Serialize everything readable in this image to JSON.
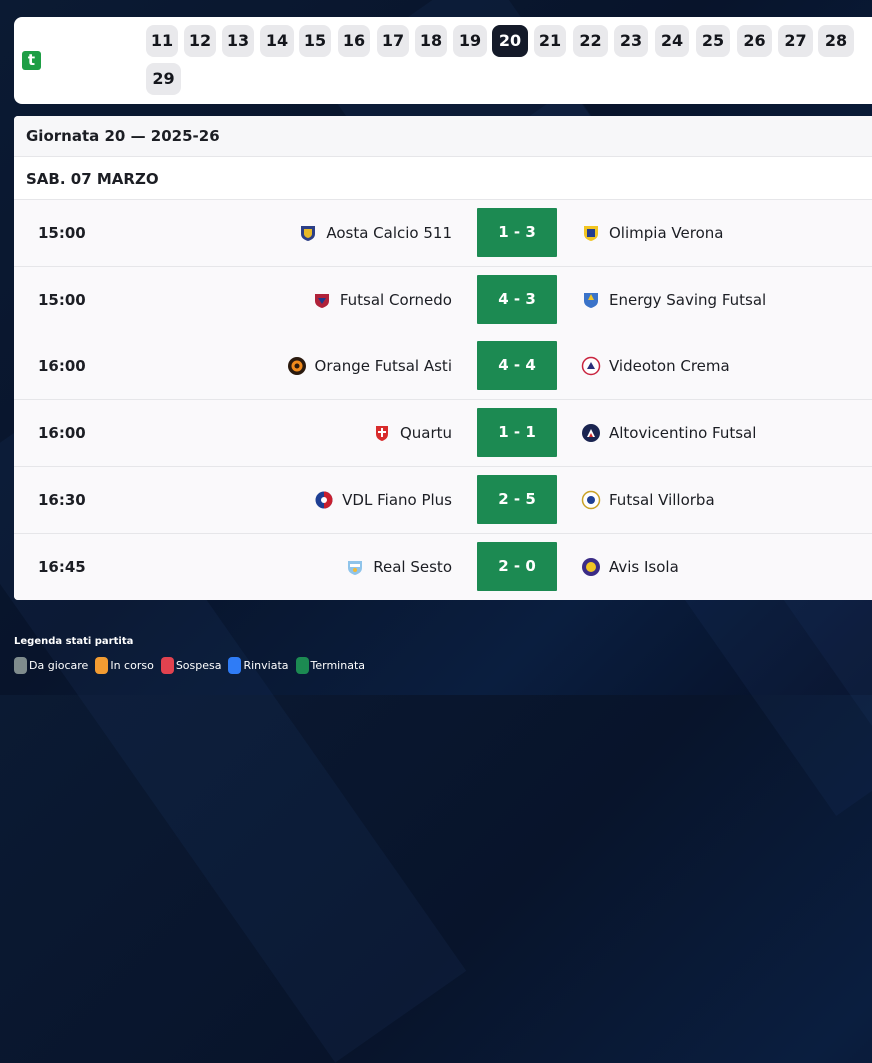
{
  "logo": {
    "letter": "t",
    "color": "#1e9e45"
  },
  "rounds": {
    "items": [
      "11",
      "12",
      "13",
      "14",
      "15",
      "16",
      "17",
      "18",
      "19",
      "20",
      "21",
      "22",
      "23",
      "24",
      "25",
      "26",
      "27",
      "28",
      "29"
    ],
    "active": "20"
  },
  "panel": {
    "title": "Giornata 20 — 2025-26",
    "date": "SAB. 07 MARZO"
  },
  "matches": [
    {
      "time": "15:00",
      "home": "Aosta Calcio 511",
      "score": "1 - 3",
      "away": "Olimpia Verona"
    },
    {
      "time": "15:00",
      "home": "Futsal Cornedo",
      "score": "4 - 3",
      "away": "Energy Saving Futsal"
    },
    {
      "time": "16:00",
      "home": "Orange Futsal Asti",
      "score": "4 - 4",
      "away": "Videoton Crema"
    },
    {
      "time": "16:00",
      "home": "Quartu",
      "score": "1 - 1",
      "away": "Altovicentino Futsal"
    },
    {
      "time": "16:30",
      "home": "VDL Fiano Plus",
      "score": "2 - 5",
      "away": "Futsal Villorba"
    },
    {
      "time": "16:45",
      "home": "Real Sesto",
      "score": "2 - 0",
      "away": "Avis Isola"
    }
  ],
  "legend": {
    "title": "Legenda stati partita",
    "items": [
      {
        "label": "Da giocare",
        "color": "#7f8c8d"
      },
      {
        "label": "In corso",
        "color": "#f39c32"
      },
      {
        "label": "Sospesa",
        "color": "#e2424f"
      },
      {
        "label": "Rinviata",
        "color": "#2f7cf6"
      },
      {
        "label": "Terminata",
        "color": "#1c8a52"
      }
    ]
  },
  "colors": {
    "score_bg": "#1c8a52",
    "active_round": "#141a29"
  }
}
